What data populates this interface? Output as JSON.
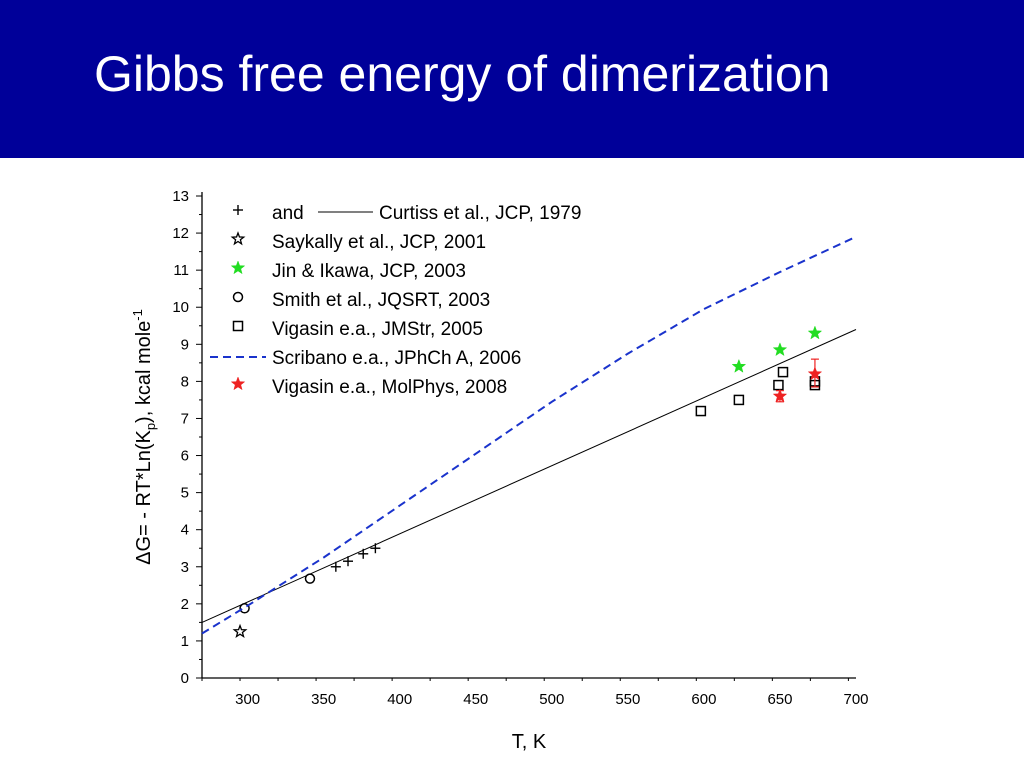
{
  "slide": {
    "title": "Gibbs free energy of dimerization"
  },
  "colors": {
    "title_bar": "#000099",
    "dashed_line": "#1a33cc",
    "green_star": "#22dd22",
    "red_star": "#ee2222",
    "black": "#000000"
  },
  "chart_data": {
    "type": "scatter",
    "xlabel": "T, K",
    "ylabel_parts": [
      "ΔG= - RT*Ln(K",
      "p",
      "), kcal mole",
      "-1"
    ],
    "xlim": [
      270,
      700
    ],
    "ylim": [
      0,
      13
    ],
    "xticks": [
      300,
      350,
      400,
      450,
      500,
      550,
      600,
      650,
      700
    ],
    "yticks": [
      0,
      1,
      2,
      3,
      4,
      5,
      6,
      7,
      8,
      9,
      10,
      11,
      12,
      13
    ],
    "grid": false,
    "legend_position": "top-left",
    "series": [
      {
        "name": "Curtiss et al., JCP, 1979",
        "legend_prefix": "and",
        "marker": "plus",
        "color": "#000000",
        "points": [
          [
            358,
            3.0
          ],
          [
            366,
            3.15
          ],
          [
            376,
            3.35
          ],
          [
            384,
            3.5
          ]
        ]
      },
      {
        "name": "Curtiss et al., JCP, 1979",
        "legend_prefix": "and",
        "line": "solid",
        "color": "#000000",
        "points": [
          [
            270,
            1.5
          ],
          [
            700,
            9.4
          ]
        ]
      },
      {
        "name": "Saykally et al., JCP, 2001",
        "marker": "star-open",
        "color": "#000000",
        "points": [
          [
            295,
            1.25
          ]
        ]
      },
      {
        "name": "Jin & Ikawa, JCP, 2003",
        "marker": "star-filled",
        "color": "#22dd22",
        "points": [
          [
            623,
            8.4
          ],
          [
            650,
            8.85
          ],
          [
            673,
            9.3
          ]
        ]
      },
      {
        "name": "Smith et al., JQSRT, 2003",
        "marker": "circle-open",
        "color": "#000000",
        "points": [
          [
            298,
            1.88
          ],
          [
            341,
            2.68
          ]
        ]
      },
      {
        "name": "Vigasin e.a., JMStr, 2005",
        "marker": "square-open",
        "color": "#000000",
        "points": [
          [
            598,
            7.2
          ],
          [
            623,
            7.5
          ],
          [
            649,
            7.9
          ],
          [
            652,
            8.25
          ],
          [
            673,
            7.9
          ],
          [
            673,
            8.0
          ]
        ]
      },
      {
        "name": "Scribano e.a., JPhCh A, 2006",
        "line": "dashed",
        "color": "#1a33cc",
        "points": [
          [
            270,
            1.2
          ],
          [
            300,
            1.95
          ],
          [
            350,
            3.25
          ],
          [
            400,
            4.65
          ],
          [
            450,
            6.05
          ],
          [
            500,
            7.45
          ],
          [
            550,
            8.75
          ],
          [
            600,
            9.95
          ],
          [
            650,
            10.95
          ],
          [
            700,
            11.9
          ]
        ]
      },
      {
        "name": "Vigasin e.a., MolPhys, 2008",
        "marker": "star-filled",
        "color": "#ee2222",
        "points": [
          [
            650,
            7.6
          ],
          [
            673,
            8.2
          ]
        ],
        "error_bars": [
          [
            7.45,
            7.75
          ],
          [
            7.85,
            8.6
          ]
        ]
      }
    ]
  }
}
